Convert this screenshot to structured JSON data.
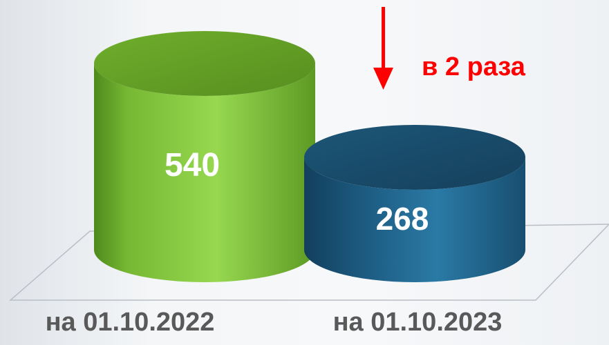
{
  "chart_data": {
    "type": "bar",
    "categories": [
      "на 01.10.2022",
      "на 01.10.2023"
    ],
    "values": [
      540,
      268
    ],
    "value_labels": [
      "540",
      "268"
    ],
    "annotation": "в 2 раза",
    "colors": {
      "bar_1": "#7fc13a",
      "bar_2": "#1f5f86",
      "annotation": "#ff0000",
      "category_labels": "#595959"
    },
    "style": "3d-cylinder",
    "grid": false,
    "legend": "none"
  }
}
